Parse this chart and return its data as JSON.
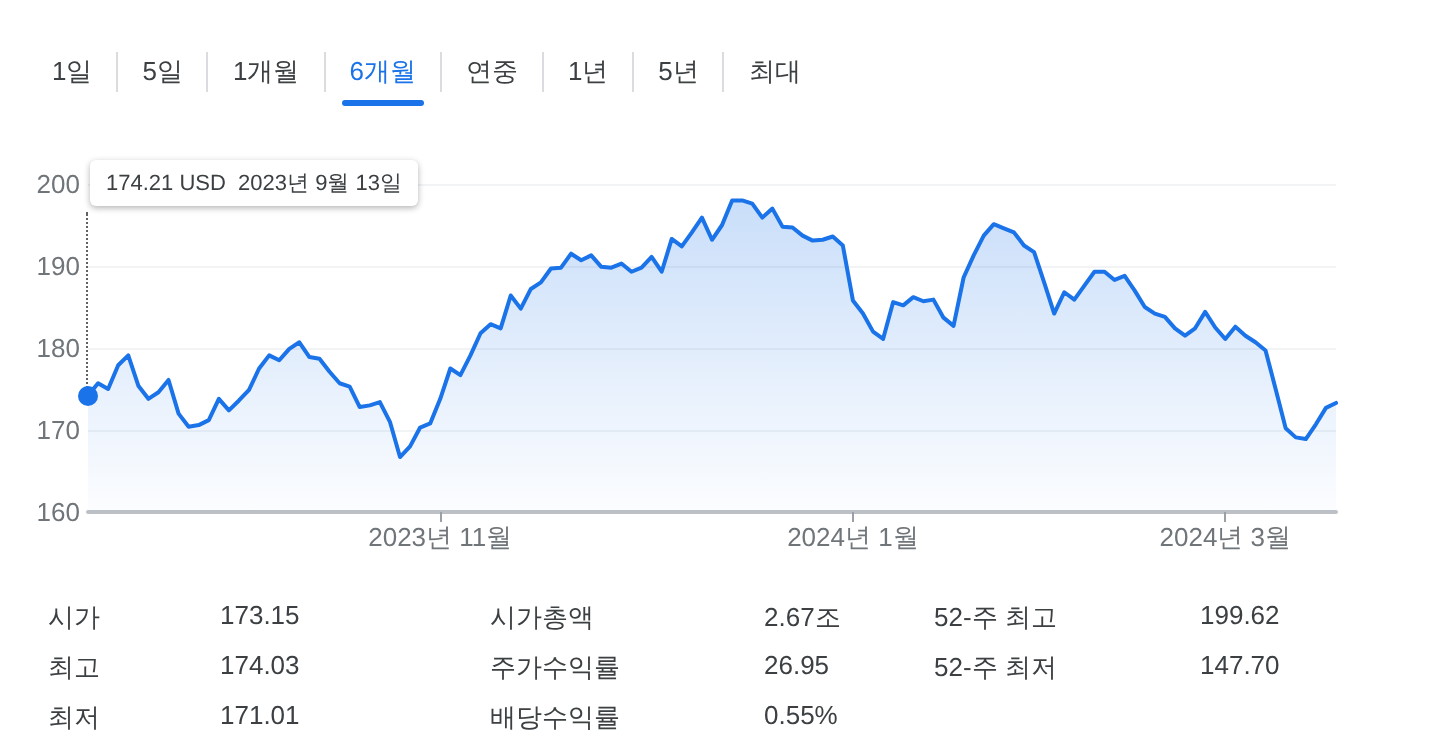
{
  "chart_data": {
    "type": "area",
    "color": "#1a73e8",
    "categories": [
      null,
      null,
      null,
      null,
      null,
      null,
      null,
      null,
      null,
      null,
      null,
      null,
      null,
      null,
      null,
      null,
      null,
      null,
      null,
      null,
      null,
      null,
      null,
      null,
      null,
      null,
      null,
      null,
      null,
      null,
      null,
      null,
      null,
      null,
      null,
      "2023년 11월",
      null,
      null,
      null,
      null,
      null,
      null,
      null,
      null,
      null,
      null,
      null,
      null,
      null,
      null,
      null,
      null,
      null,
      null,
      null,
      null,
      null,
      null,
      null,
      null,
      null,
      null,
      null,
      null,
      null,
      null,
      null,
      null,
      null,
      null,
      null,
      null,
      null,
      null,
      null,
      null,
      "2024년 1월",
      null,
      null,
      null,
      null,
      null,
      null,
      null,
      null,
      null,
      null,
      null,
      null,
      null,
      null,
      null,
      null,
      null,
      null,
      null,
      null,
      null,
      null,
      null,
      null,
      null,
      null,
      null,
      null,
      null,
      null,
      null,
      null,
      null,
      null,
      null,
      null,
      "2024년 3월",
      null,
      null,
      null,
      null,
      null,
      null,
      null,
      null,
      null,
      null,
      null
    ],
    "values": [
      174.2,
      175.7,
      175.0,
      177.9,
      179.1,
      175.4,
      173.8,
      174.6,
      176.1,
      172.0,
      170.4,
      170.6,
      171.2,
      173.8,
      172.4,
      173.6,
      174.9,
      177.5,
      179.1,
      178.5,
      179.9,
      180.7,
      178.9,
      178.7,
      177.1,
      175.7,
      175.3,
      172.8,
      173.0,
      173.4,
      171.0,
      166.7,
      168.0,
      170.3,
      170.8,
      173.8,
      177.5,
      176.7,
      179.1,
      181.8,
      182.9,
      182.4,
      186.4,
      184.8,
      187.2,
      188.0,
      189.7,
      189.8,
      191.5,
      190.7,
      191.3,
      189.9,
      189.8,
      190.3,
      189.3,
      189.8,
      191.1,
      189.3,
      193.3,
      192.4,
      194.1,
      195.9,
      193.2,
      195.0,
      198.0,
      198.0,
      197.6,
      195.9,
      197.0,
      194.8,
      194.7,
      193.7,
      193.1,
      193.2,
      193.6,
      192.5,
      185.8,
      184.2,
      182.0,
      181.1,
      185.6,
      185.2,
      186.2,
      185.7,
      185.9,
      183.7,
      182.7,
      188.6,
      191.3,
      193.7,
      195.1,
      194.6,
      194.1,
      192.5,
      191.7,
      188.0,
      184.2,
      186.8,
      185.9,
      187.6,
      189.3,
      189.3,
      188.3,
      188.8,
      187.0,
      185.0,
      184.2,
      183.8,
      182.4,
      181.5,
      182.4,
      184.4,
      182.5,
      181.1,
      182.6,
      181.5,
      180.7,
      179.7,
      175.0,
      170.2,
      169.1,
      168.9,
      170.7,
      172.7,
      173.3
    ],
    "ylim": [
      160,
      200
    ],
    "yticks": [
      160,
      170,
      180,
      190,
      200
    ],
    "grid": "y",
    "marker": "none",
    "line_style": "solid",
    "annotations": [
      "1일",
      "5일",
      "1개월",
      "6개월",
      "연중",
      "1년",
      "5년",
      "최대",
      "174.21 USD  2023년 9월 13일",
      "시가",
      "173.15",
      "시가총액",
      "2.67조",
      "52-주 최고",
      "199.62",
      "최고",
      "174.03",
      "주가수익률",
      "26.95",
      "52-주 최저",
      "147.70",
      "최저",
      "171.01",
      "배당수익률",
      "0.55%"
    ]
  }
}
